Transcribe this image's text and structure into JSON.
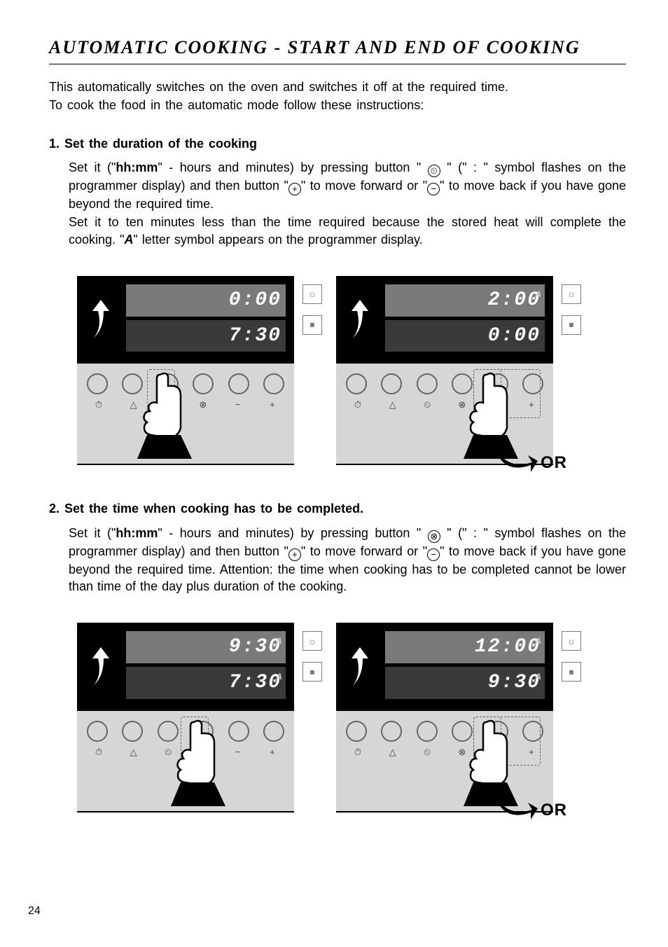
{
  "title": "AUTOMATIC COOKING - START AND END OF COOKING",
  "intro": {
    "line1": "This automatically switches on the oven and switches it off at the required time.",
    "line2": "To cook the food in the automatic mode follow these instructions:"
  },
  "step1": {
    "number": "1.",
    "heading": "Set the duration of the cooking",
    "body_parts": {
      "p1a": "Set it (\"",
      "p1b": "hh:mm",
      "p1c": "\" - hours and minutes) by pressing button \" ",
      "p1d": " \"  (\" : \" symbol flashes on the programmer display) and then button \"",
      "p1e": "\" to move forward or \"",
      "p1f": "\" to move back if you have gone beyond the required time.",
      "p2a": "Set it to ten minutes less than the time required because the stored heat will complete the cooking. \"",
      "p2b": "A",
      "p2c": "\" letter symbol appears on the programmer display."
    },
    "icons": {
      "pot": "⏲",
      "plus": "+",
      "minus": "−"
    },
    "panel_left": {
      "top_value": "0:00",
      "top_sub": "",
      "bottom_value": "7:30",
      "bottom_sub": "",
      "highlight": "top",
      "pressed_button_index": 2,
      "labels": [
        "⏱︎",
        "△",
        "⏲",
        "⊗",
        "−",
        "+"
      ],
      "or_label": ""
    },
    "panel_right": {
      "top_value": "2:00",
      "top_sub": "A",
      "bottom_value": "0:00",
      "bottom_sub": "",
      "highlight": "top",
      "pressed_button_index": 4,
      "dashed_range": [
        4,
        5
      ],
      "labels": [
        "⏱︎",
        "△",
        "⏲",
        "⊗",
        "−",
        "+"
      ],
      "or_label": "OR"
    }
  },
  "step2": {
    "number": "2.",
    "heading": "Set the time when cooking has to be completed.",
    "body_parts": {
      "p1a": "Set it (\"",
      "p1b": "hh:mm",
      "p1c": "\" - hours and minutes) by pressing button \" ",
      "p1d": " \" (\" : \" symbol flashes on the programmer display) and then button \"",
      "p1e": "\" to move forward or \"",
      "p1f": "\" to move back if you have gone beyond the required time. Attention: the time when cooking has to be completed cannot be lower than time of the day plus duration of the cooking."
    },
    "icons": {
      "stop": "⊗",
      "plus": "+",
      "minus": "−"
    },
    "panel_left": {
      "top_value": "9:30",
      "top_sub": "A",
      "bottom_value": "7:30",
      "bottom_sub": "A",
      "highlight": "top",
      "pressed_button_index": 3,
      "labels": [
        "⏱︎",
        "△",
        "⏲",
        "⊗",
        "−",
        "+"
      ],
      "or_label": ""
    },
    "panel_right": {
      "top_value": "12:00",
      "top_sub": "A",
      "bottom_value": "9:30",
      "bottom_sub": "A",
      "highlight": "top",
      "pressed_button_index": 4,
      "dashed_range": [
        4,
        5
      ],
      "labels": [
        "⏱︎",
        "△",
        "⏲",
        "⊗",
        "−",
        "+"
      ],
      "or_label": "OR"
    }
  },
  "page_number": "24",
  "colors": {
    "display_bg": "#000000",
    "lcd_bg": "#3a3a3a",
    "lcd_highlight": "#7a7a7a",
    "panel_bg": "#d6d6d6",
    "knob_border": "#666666"
  }
}
